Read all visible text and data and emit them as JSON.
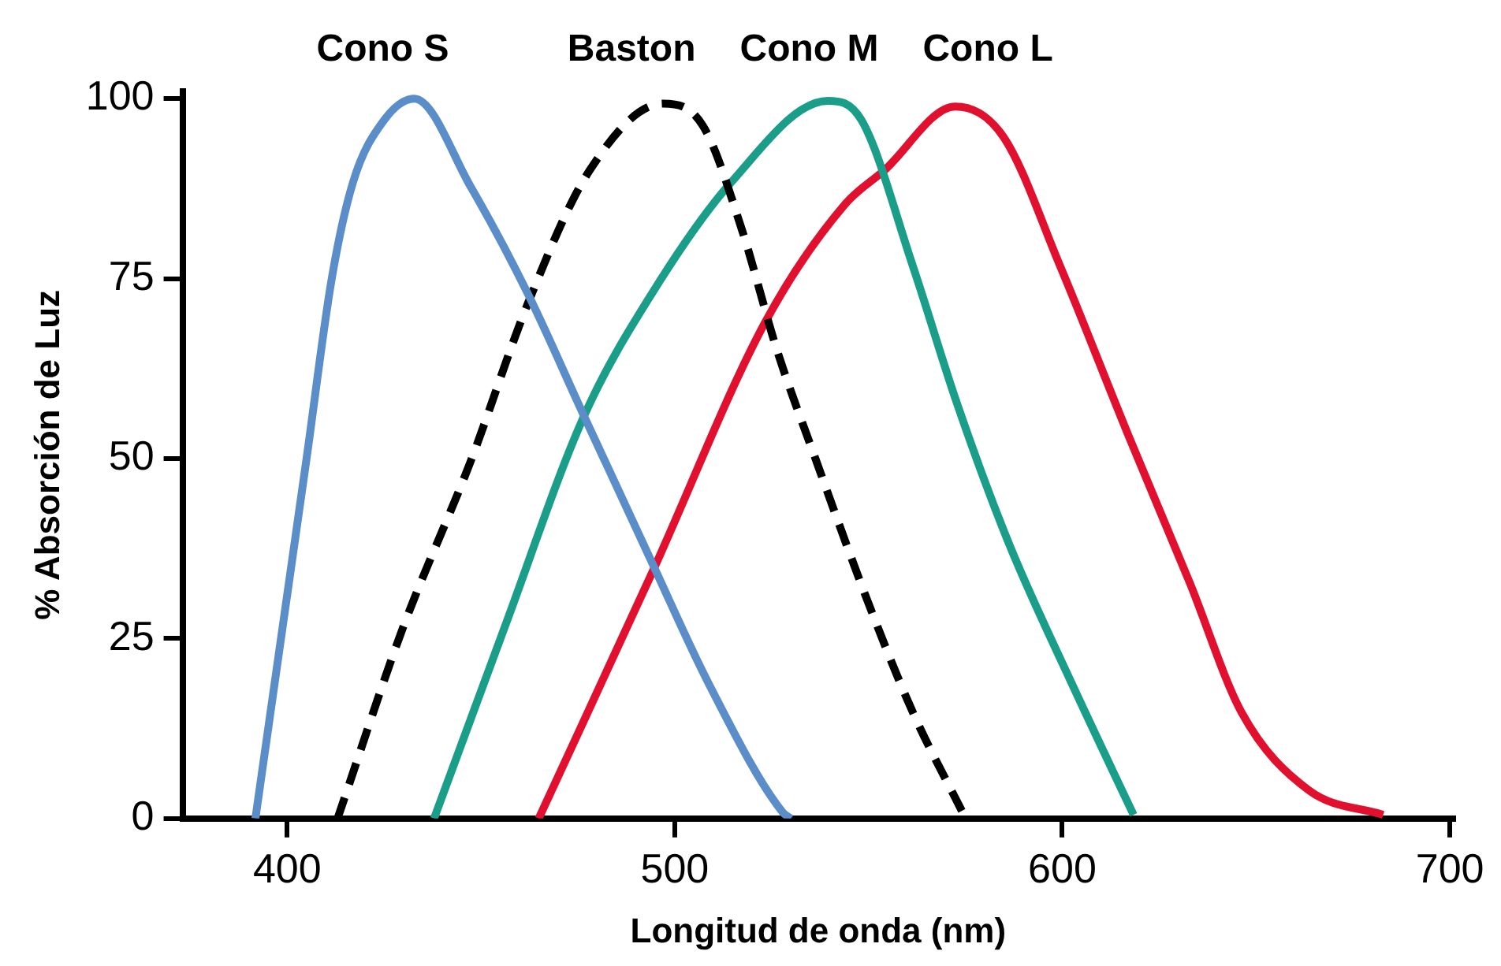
{
  "chart_data": {
    "type": "line",
    "xlabel": "Longitud de onda (nm)",
    "ylabel": "% Absorción de Luz",
    "xlim": [
      373,
      701
    ],
    "ylim": [
      0,
      101
    ],
    "xticks": [
      400,
      500,
      600,
      700
    ],
    "yticks": [
      0,
      25,
      50,
      75,
      100
    ],
    "grid": false,
    "legend": false,
    "marker": "none",
    "series": [
      {
        "name": "Cono S",
        "color": "#5b8ec8",
        "line_style": "solid",
        "x": [
          391.8,
          398.4,
          405,
          411.5,
          417,
          425,
          432.8,
          447.4,
          462,
          476.6,
          494,
          508.8,
          527.8,
          530
        ],
        "values": [
          0,
          25,
          50,
          75,
          88.4,
          97,
          100,
          87.7,
          73,
          55.9,
          35.7,
          18.7,
          0.9,
          0
        ]
      },
      {
        "name": "Baston",
        "color": "#000000",
        "line_style": "dashed",
        "x": [
          413,
          429.8,
          447.4,
          462,
          478,
          497,
          507.3,
          517.5,
          526.3,
          536.5,
          549.7,
          561.4,
          574.6
        ],
        "values": [
          0,
          26.4,
          49.7,
          71.4,
          90,
          99.3,
          96.2,
          81.5,
          65.2,
          49.7,
          30.3,
          14.8,
          0.5
        ]
      },
      {
        "name": "Cono M",
        "color": "#1a9e8a",
        "line_style": "solid",
        "x": [
          437.9,
          456,
          476.6,
          494.2,
          514.6,
          539.5,
          548.2,
          561.4,
          573,
          586.3,
          602.5,
          618.4
        ],
        "values": [
          0,
          26.4,
          55.9,
          73,
          88.4,
          99.7,
          97,
          76.8,
          57.4,
          38.1,
          18.7,
          0.5
        ]
      },
      {
        "name": "Cono L",
        "color": "#e0102e",
        "line_style": "solid",
        "x": [
          464.9,
          494.2,
          523.4,
          543.9,
          554,
          572.4,
          584.8,
          599.4,
          617,
          633,
          646.2,
          663.7,
          682.8
        ],
        "values": [
          0,
          34.2,
          69,
          85.3,
          90,
          98.9,
          94.7,
          76.8,
          53.3,
          32.6,
          14.8,
          3.9,
          0.5
        ]
      }
    ]
  }
}
